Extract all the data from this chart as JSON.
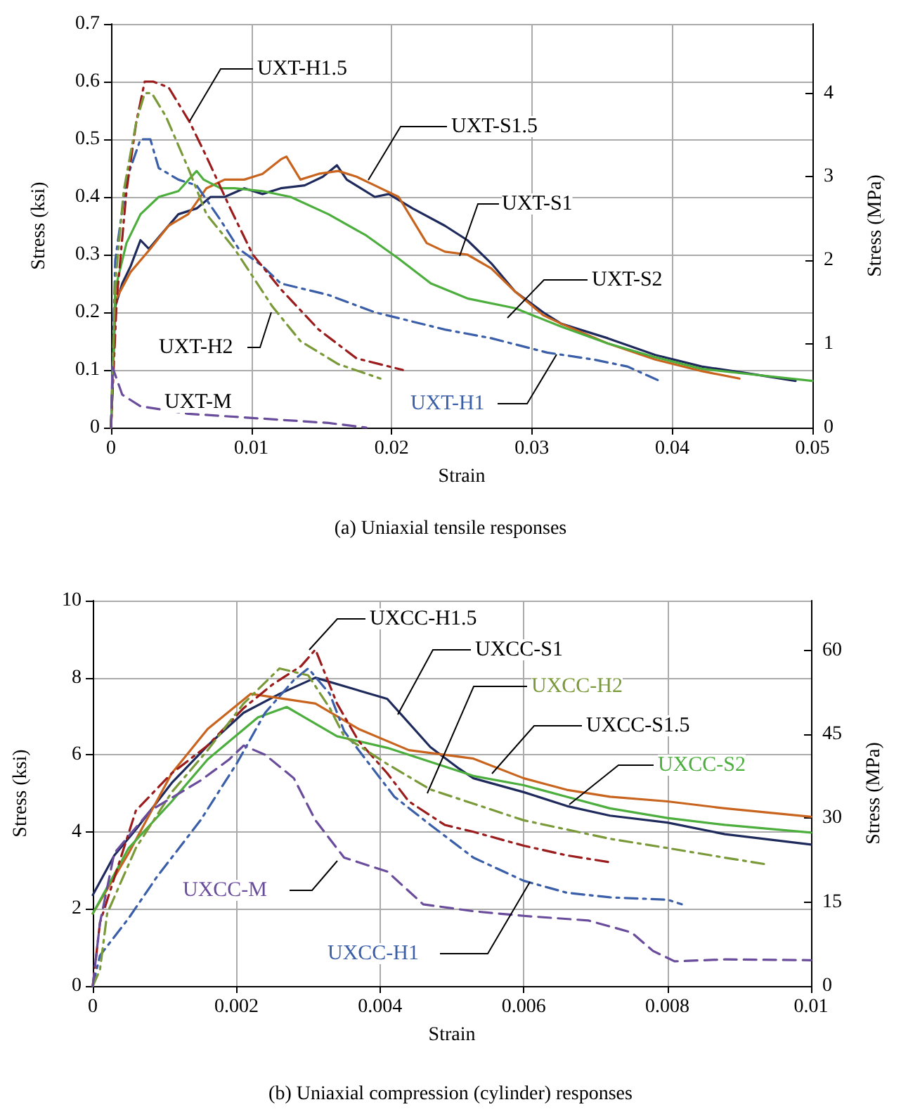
{
  "chart_data": [
    {
      "type": "line",
      "title": "(a) Uniaxial tensile responses",
      "xlabel": "Strain",
      "ylabel": "Stress (ksi)",
      "y2label": "Stress (MPa)",
      "xlim": [
        0,
        0.05
      ],
      "xticks": [
        0,
        0.01,
        0.02,
        0.03,
        0.04,
        0.05
      ],
      "ylim": [
        0,
        0.7
      ],
      "yticks": [
        0,
        0.1,
        0.2,
        0.3,
        0.4,
        0.5,
        0.6,
        0.7
      ],
      "y2lim": [
        0,
        4.83
      ],
      "y2ticks": [
        0,
        1,
        2,
        3,
        4
      ],
      "grid": true,
      "series": [
        {
          "name": "UXT-S1",
          "color": "#1f2a5c",
          "line_style": "solid",
          "x": [
            0,
            0.0003,
            0.0008,
            0.0014,
            0.0021,
            0.0027,
            0.0034,
            0.0048,
            0.0061,
            0.0071,
            0.0081,
            0.0095,
            0.0108,
            0.0121,
            0.0138,
            0.0151,
            0.0161,
            0.0168,
            0.0178,
            0.0188,
            0.0198,
            0.0215,
            0.0238,
            0.0254,
            0.0271,
            0.0288,
            0.0308,
            0.0321,
            0.0354,
            0.0388,
            0.0421,
            0.0454,
            0.0488
          ],
          "values": [
            0,
            0.21,
            0.25,
            0.28,
            0.325,
            0.31,
            0.33,
            0.37,
            0.38,
            0.4,
            0.4,
            0.415,
            0.405,
            0.415,
            0.42,
            0.435,
            0.455,
            0.43,
            0.415,
            0.4,
            0.405,
            0.38,
            0.35,
            0.325,
            0.285,
            0.236,
            0.2,
            0.18,
            0.155,
            0.126,
            0.106,
            0.094,
            0.081
          ]
        },
        {
          "name": "UXT-S1.5",
          "color": "#c8641e",
          "line_style": "solid",
          "x": [
            0,
            0.0003,
            0.0014,
            0.0028,
            0.0041,
            0.0055,
            0.0068,
            0.0081,
            0.0095,
            0.0108,
            0.0121,
            0.0125,
            0.0135,
            0.0148,
            0.0162,
            0.0175,
            0.0188,
            0.0205,
            0.0225,
            0.0238,
            0.0254,
            0.0271,
            0.0288,
            0.0308,
            0.0321,
            0.0354,
            0.0388,
            0.0421,
            0.0448
          ],
          "values": [
            0,
            0.22,
            0.27,
            0.31,
            0.35,
            0.37,
            0.415,
            0.43,
            0.43,
            0.44,
            0.465,
            0.47,
            0.43,
            0.44,
            0.445,
            0.435,
            0.42,
            0.4,
            0.32,
            0.305,
            0.3,
            0.276,
            0.236,
            0.195,
            0.18,
            0.146,
            0.118,
            0.098,
            0.085
          ]
        },
        {
          "name": "UXT-S2",
          "color": "#4cae3c",
          "line_style": "solid",
          "x": [
            0,
            0.0003,
            0.0011,
            0.0021,
            0.0034,
            0.0048,
            0.0061,
            0.0066,
            0.0078,
            0.0088,
            0.0108,
            0.0128,
            0.0155,
            0.0182,
            0.0205,
            0.0228,
            0.0254,
            0.0288,
            0.0321,
            0.0354,
            0.0388,
            0.0421,
            0.0454,
            0.05
          ],
          "values": [
            0,
            0.24,
            0.32,
            0.37,
            0.4,
            0.41,
            0.445,
            0.43,
            0.415,
            0.415,
            0.41,
            0.4,
            0.37,
            0.333,
            0.293,
            0.25,
            0.224,
            0.207,
            0.175,
            0.146,
            0.122,
            0.102,
            0.093,
            0.081
          ]
        },
        {
          "name": "UXT-H1",
          "color": "#3a5fa8",
          "line_style": "dashdot",
          "x": [
            0,
            0.0003,
            0.0011,
            0.0021,
            0.0028,
            0.0034,
            0.0048,
            0.0061,
            0.0078,
            0.0091,
            0.0108,
            0.0121,
            0.0155,
            0.0188,
            0.0238,
            0.0271,
            0.0311,
            0.0344,
            0.0368,
            0.0391
          ],
          "values": [
            0,
            0.29,
            0.43,
            0.5,
            0.5,
            0.45,
            0.43,
            0.42,
            0.36,
            0.31,
            0.28,
            0.25,
            0.23,
            0.2,
            0.17,
            0.155,
            0.13,
            0.118,
            0.106,
            0.081
          ]
        },
        {
          "name": "UXT-H1.5",
          "color": "#9b1c1c",
          "line_style": "dashdot",
          "x": [
            0,
            0.0004,
            0.0011,
            0.0018,
            0.0024,
            0.003,
            0.0041,
            0.0056,
            0.0068,
            0.0085,
            0.0101,
            0.0121,
            0.0148,
            0.0175,
            0.0208
          ],
          "values": [
            0,
            0.22,
            0.41,
            0.53,
            0.6,
            0.6,
            0.59,
            0.53,
            0.47,
            0.38,
            0.3,
            0.24,
            0.17,
            0.12,
            0.1
          ]
        },
        {
          "name": "UXT-H2",
          "color": "#7a9a3a",
          "line_style": "dashdot",
          "x": [
            0,
            0.0003,
            0.0009,
            0.0018,
            0.0024,
            0.0029,
            0.0039,
            0.0055,
            0.0068,
            0.0088,
            0.0115,
            0.0135,
            0.0162,
            0.0192
          ],
          "values": [
            0,
            0.25,
            0.41,
            0.53,
            0.58,
            0.58,
            0.54,
            0.45,
            0.37,
            0.31,
            0.21,
            0.15,
            0.11,
            0.085
          ]
        },
        {
          "name": "UXT-M",
          "color": "#6a4c9c",
          "line_style": "dashed",
          "x": [
            0,
            0.0001,
            0.0008,
            0.0021,
            0.0055,
            0.0105,
            0.0155,
            0.0182
          ],
          "values": [
            0,
            0.105,
            0.057,
            0.037,
            0.024,
            0.016,
            0.008,
            0
          ]
        }
      ]
    },
    {
      "type": "line",
      "title": "(b) Uniaxial compression (cylinder) responses",
      "xlabel": "Strain",
      "ylabel": "Stress (ksi)",
      "y2label": "Stress (MPa)",
      "xlim": [
        0,
        0.01
      ],
      "xticks": [
        0,
        0.002,
        0.004,
        0.006,
        0.008,
        0.01
      ],
      "ylim": [
        0,
        10
      ],
      "yticks": [
        0,
        2,
        4,
        6,
        8,
        10
      ],
      "y2lim": [
        0,
        68.9
      ],
      "y2ticks": [
        0,
        15,
        30,
        45,
        60
      ],
      "grid": true,
      "series": [
        {
          "name": "UXCC-S1",
          "color": "#1f2a5c",
          "line_style": "solid",
          "x": [
            0,
            0.0003,
            0.0006,
            0.0011,
            0.0016,
            0.0021,
            0.0026,
            0.0031,
            0.0041,
            0.0047,
            0.0051,
            0.0053,
            0.006,
            0.0066,
            0.0072,
            0.008,
            0.0088,
            0.01
          ],
          "values": [
            2.36,
            3.39,
            4.06,
            5.27,
            6.24,
            7.09,
            7.58,
            8.0,
            7.45,
            6.2,
            5.64,
            5.39,
            5.03,
            4.67,
            4.42,
            4.24,
            3.94,
            3.67
          ]
        },
        {
          "name": "UXCC-S1.5",
          "color": "#c8641e",
          "line_style": "solid",
          "x": [
            0,
            0.0005,
            0.0011,
            0.0016,
            0.0022,
            0.0031,
            0.0037,
            0.0044,
            0.0053,
            0.006,
            0.0066,
            0.0072,
            0.008,
            0.0088,
            0.01
          ],
          "values": [
            1.88,
            3.45,
            5.52,
            6.67,
            7.58,
            7.33,
            6.67,
            6.12,
            5.9,
            5.39,
            5.09,
            4.91,
            4.79,
            4.61,
            4.39
          ]
        },
        {
          "name": "UXCC-S2",
          "color": "#4cae3c",
          "line_style": "solid",
          "x": [
            0,
            0.0005,
            0.0011,
            0.0016,
            0.0023,
            0.0027,
            0.0034,
            0.0041,
            0.0053,
            0.006,
            0.0066,
            0.0072,
            0.008,
            0.0088,
            0.01
          ],
          "values": [
            1.88,
            3.58,
            4.79,
            5.88,
            6.97,
            7.24,
            6.48,
            6.18,
            5.45,
            5.21,
            4.91,
            4.61,
            4.36,
            4.18,
            3.98
          ]
        },
        {
          "name": "UXCC-H1",
          "color": "#3a5fa8",
          "line_style": "dashdot",
          "x": [
            0,
            0.0001,
            0.0005,
            0.0009,
            0.0015,
            0.002,
            0.0024,
            0.0028,
            0.003,
            0.0033,
            0.0035,
            0.0038,
            0.0042,
            0.0047,
            0.0053,
            0.006,
            0.0066,
            0.0072,
            0.008,
            0.0082
          ],
          "values": [
            0,
            0.79,
            1.76,
            2.85,
            4.3,
            5.76,
            7.09,
            7.94,
            8.24,
            7.58,
            6.61,
            5.88,
            4.91,
            4.18,
            3.33,
            2.73,
            2.42,
            2.3,
            2.24,
            2.12
          ]
        },
        {
          "name": "UXCC-H1.5",
          "color": "#9b1c1c",
          "line_style": "dashdot",
          "x": [
            0,
            0.0001,
            0.0006,
            0.0011,
            0.0016,
            0.0021,
            0.0025,
            0.0029,
            0.0031,
            0.0034,
            0.0037,
            0.0041,
            0.0044,
            0.0049,
            0.0053,
            0.006,
            0.0066,
            0.0072
          ],
          "values": [
            0,
            1.64,
            4.55,
            5.52,
            6.24,
            7.21,
            7.82,
            8.3,
            8.73,
            7.33,
            6.36,
            5.52,
            4.79,
            4.18,
            4.0,
            3.64,
            3.39,
            3.21
          ]
        },
        {
          "name": "UXCC-H2",
          "color": "#7a9a3a",
          "line_style": "dashdot",
          "x": [
            0,
            0.0001,
            0.0002,
            0.0006,
            0.0011,
            0.0016,
            0.0021,
            0.0026,
            0.003,
            0.0033,
            0.0035,
            0.0041,
            0.0047,
            0.0053,
            0.006,
            0.0066,
            0.0072,
            0.008,
            0.0088,
            0.0094
          ],
          "values": [
            0,
            0.42,
            1.88,
            3.58,
            5.03,
            6.12,
            7.33,
            8.24,
            8.06,
            7.21,
            6.48,
            5.76,
            5.1,
            4.73,
            4.3,
            4.06,
            3.82,
            3.58,
            3.33,
            3.15
          ]
        },
        {
          "name": "UXCC-M",
          "color": "#6a4c9c",
          "line_style": "dashed",
          "x": [
            0,
            0.0001,
            0.0003,
            0.0008,
            0.0015,
            0.0019,
            0.0021,
            0.0024,
            0.0028,
            0.0031,
            0.0035,
            0.0041,
            0.0046,
            0.0053,
            0.006,
            0.0069,
            0.0075,
            0.0078,
            0.0081,
            0.0088,
            0.01
          ],
          "values": [
            0,
            1.64,
            3.45,
            4.55,
            5.33,
            5.88,
            6.24,
            6.0,
            5.39,
            4.3,
            3.33,
            2.97,
            2.12,
            1.94,
            1.82,
            1.7,
            1.39,
            0.91,
            0.64,
            0.69,
            0.67
          ]
        }
      ]
    }
  ]
}
